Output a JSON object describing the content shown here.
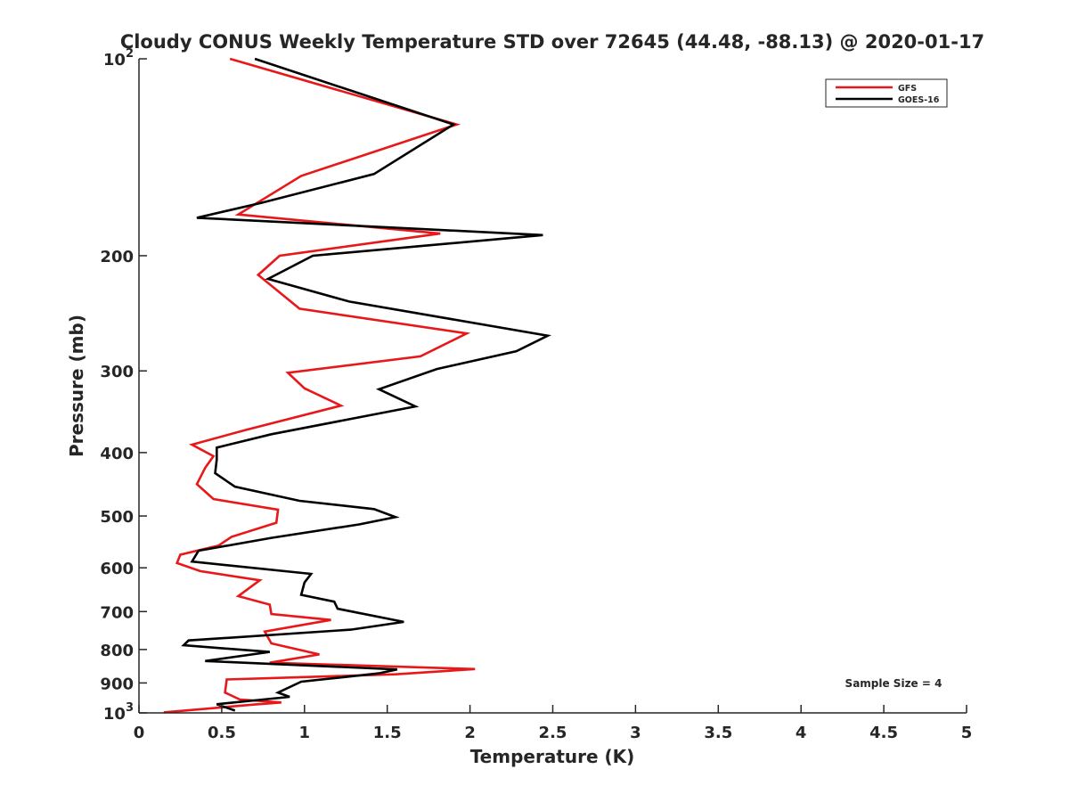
{
  "chart_data": {
    "type": "line",
    "title": "Cloudy CONUS Weekly Temperature STD over 72645 (44.48, -88.13) @ 2020-01-17",
    "xlabel": "Temperature (K)",
    "ylabel": "Pressure (mb)",
    "xlim": [
      0,
      5
    ],
    "ylim": [
      100,
      1000
    ],
    "y_scale": "log",
    "y_reversed": true,
    "grid": false,
    "legend_position": "top-right",
    "xticks": [
      {
        "v": 0,
        "label": "0"
      },
      {
        "v": 0.5,
        "label": "0.5"
      },
      {
        "v": 1,
        "label": "1"
      },
      {
        "v": 1.5,
        "label": "1.5"
      },
      {
        "v": 2,
        "label": "2"
      },
      {
        "v": 2.5,
        "label": "2.5"
      },
      {
        "v": 3,
        "label": "3"
      },
      {
        "v": 3.5,
        "label": "3.5"
      },
      {
        "v": 4,
        "label": "4"
      },
      {
        "v": 4.5,
        "label": "4.5"
      },
      {
        "v": 5,
        "label": "5"
      }
    ],
    "yticks": [
      {
        "v": 100,
        "base": "10",
        "exp": "2"
      },
      {
        "v": 200,
        "label": "200"
      },
      {
        "v": 300,
        "label": "300"
      },
      {
        "v": 400,
        "label": "400"
      },
      {
        "v": 500,
        "label": "500"
      },
      {
        "v": 600,
        "label": "600"
      },
      {
        "v": 700,
        "label": "700"
      },
      {
        "v": 800,
        "label": "800"
      },
      {
        "v": 900,
        "label": "900"
      },
      {
        "v": 1000,
        "base": "10",
        "exp": "3"
      }
    ],
    "annotation": "Sample Size = 4",
    "series": [
      {
        "name": "GFS",
        "color": "#e8181a",
        "points": [
          [
            0.55,
            100
          ],
          [
            1.92,
            126
          ],
          [
            0.98,
            151
          ],
          [
            0.6,
            173
          ],
          [
            1.82,
            185
          ],
          [
            0.85,
            200
          ],
          [
            0.72,
            214
          ],
          [
            0.97,
            241
          ],
          [
            1.98,
            263
          ],
          [
            1.7,
            285
          ],
          [
            0.9,
            302
          ],
          [
            1.0,
            319
          ],
          [
            1.22,
            339
          ],
          [
            0.65,
            369
          ],
          [
            0.32,
            389
          ],
          [
            0.45,
            405
          ],
          [
            0.4,
            422
          ],
          [
            0.35,
            447
          ],
          [
            0.45,
            471
          ],
          [
            0.84,
            489
          ],
          [
            0.83,
            512
          ],
          [
            0.56,
            538
          ],
          [
            0.48,
            555
          ],
          [
            0.25,
            573
          ],
          [
            0.23,
            590
          ],
          [
            0.37,
            607
          ],
          [
            0.73,
            627
          ],
          [
            0.6,
            663
          ],
          [
            0.79,
            683
          ],
          [
            0.8,
            706
          ],
          [
            1.16,
            721
          ],
          [
            0.76,
            751
          ],
          [
            0.8,
            783
          ],
          [
            1.09,
            814
          ],
          [
            0.79,
            838
          ],
          [
            2.03,
            857
          ],
          [
            1.55,
            873
          ],
          [
            0.53,
            889
          ],
          [
            0.52,
            931
          ],
          [
            0.61,
            954
          ],
          [
            0.86,
            964
          ],
          [
            0.7,
            971
          ],
          [
            0.15,
            998
          ]
        ]
      },
      {
        "name": "GOES-16",
        "color": "#000000",
        "points": [
          [
            0.7,
            100
          ],
          [
            1.9,
            126
          ],
          [
            1.42,
            150
          ],
          [
            0.74,
            166
          ],
          [
            0.35,
            175
          ],
          [
            2.44,
            186
          ],
          [
            1.05,
            200
          ],
          [
            0.78,
            217
          ],
          [
            1.27,
            235
          ],
          [
            2.47,
            265
          ],
          [
            2.28,
            280
          ],
          [
            1.8,
            298
          ],
          [
            1.45,
            320
          ],
          [
            1.67,
            340
          ],
          [
            0.8,
            375
          ],
          [
            0.47,
            393
          ],
          [
            0.47,
            410
          ],
          [
            0.46,
            430
          ],
          [
            0.58,
            451
          ],
          [
            0.97,
            474
          ],
          [
            1.42,
            488
          ],
          [
            1.55,
            502
          ],
          [
            1.33,
            515
          ],
          [
            0.8,
            540
          ],
          [
            0.36,
            565
          ],
          [
            0.32,
            587
          ],
          [
            1.04,
            613
          ],
          [
            1.0,
            632
          ],
          [
            0.98,
            660
          ],
          [
            1.18,
            676
          ],
          [
            1.2,
            693
          ],
          [
            1.6,
            726
          ],
          [
            1.28,
            746
          ],
          [
            0.3,
            775
          ],
          [
            0.27,
            788
          ],
          [
            0.79,
            807
          ],
          [
            0.4,
            833
          ],
          [
            1.56,
            858
          ],
          [
            1.45,
            870
          ],
          [
            0.98,
            896
          ],
          [
            0.84,
            931
          ],
          [
            0.91,
            945
          ],
          [
            0.47,
            970
          ],
          [
            0.58,
            992
          ]
        ]
      }
    ]
  }
}
